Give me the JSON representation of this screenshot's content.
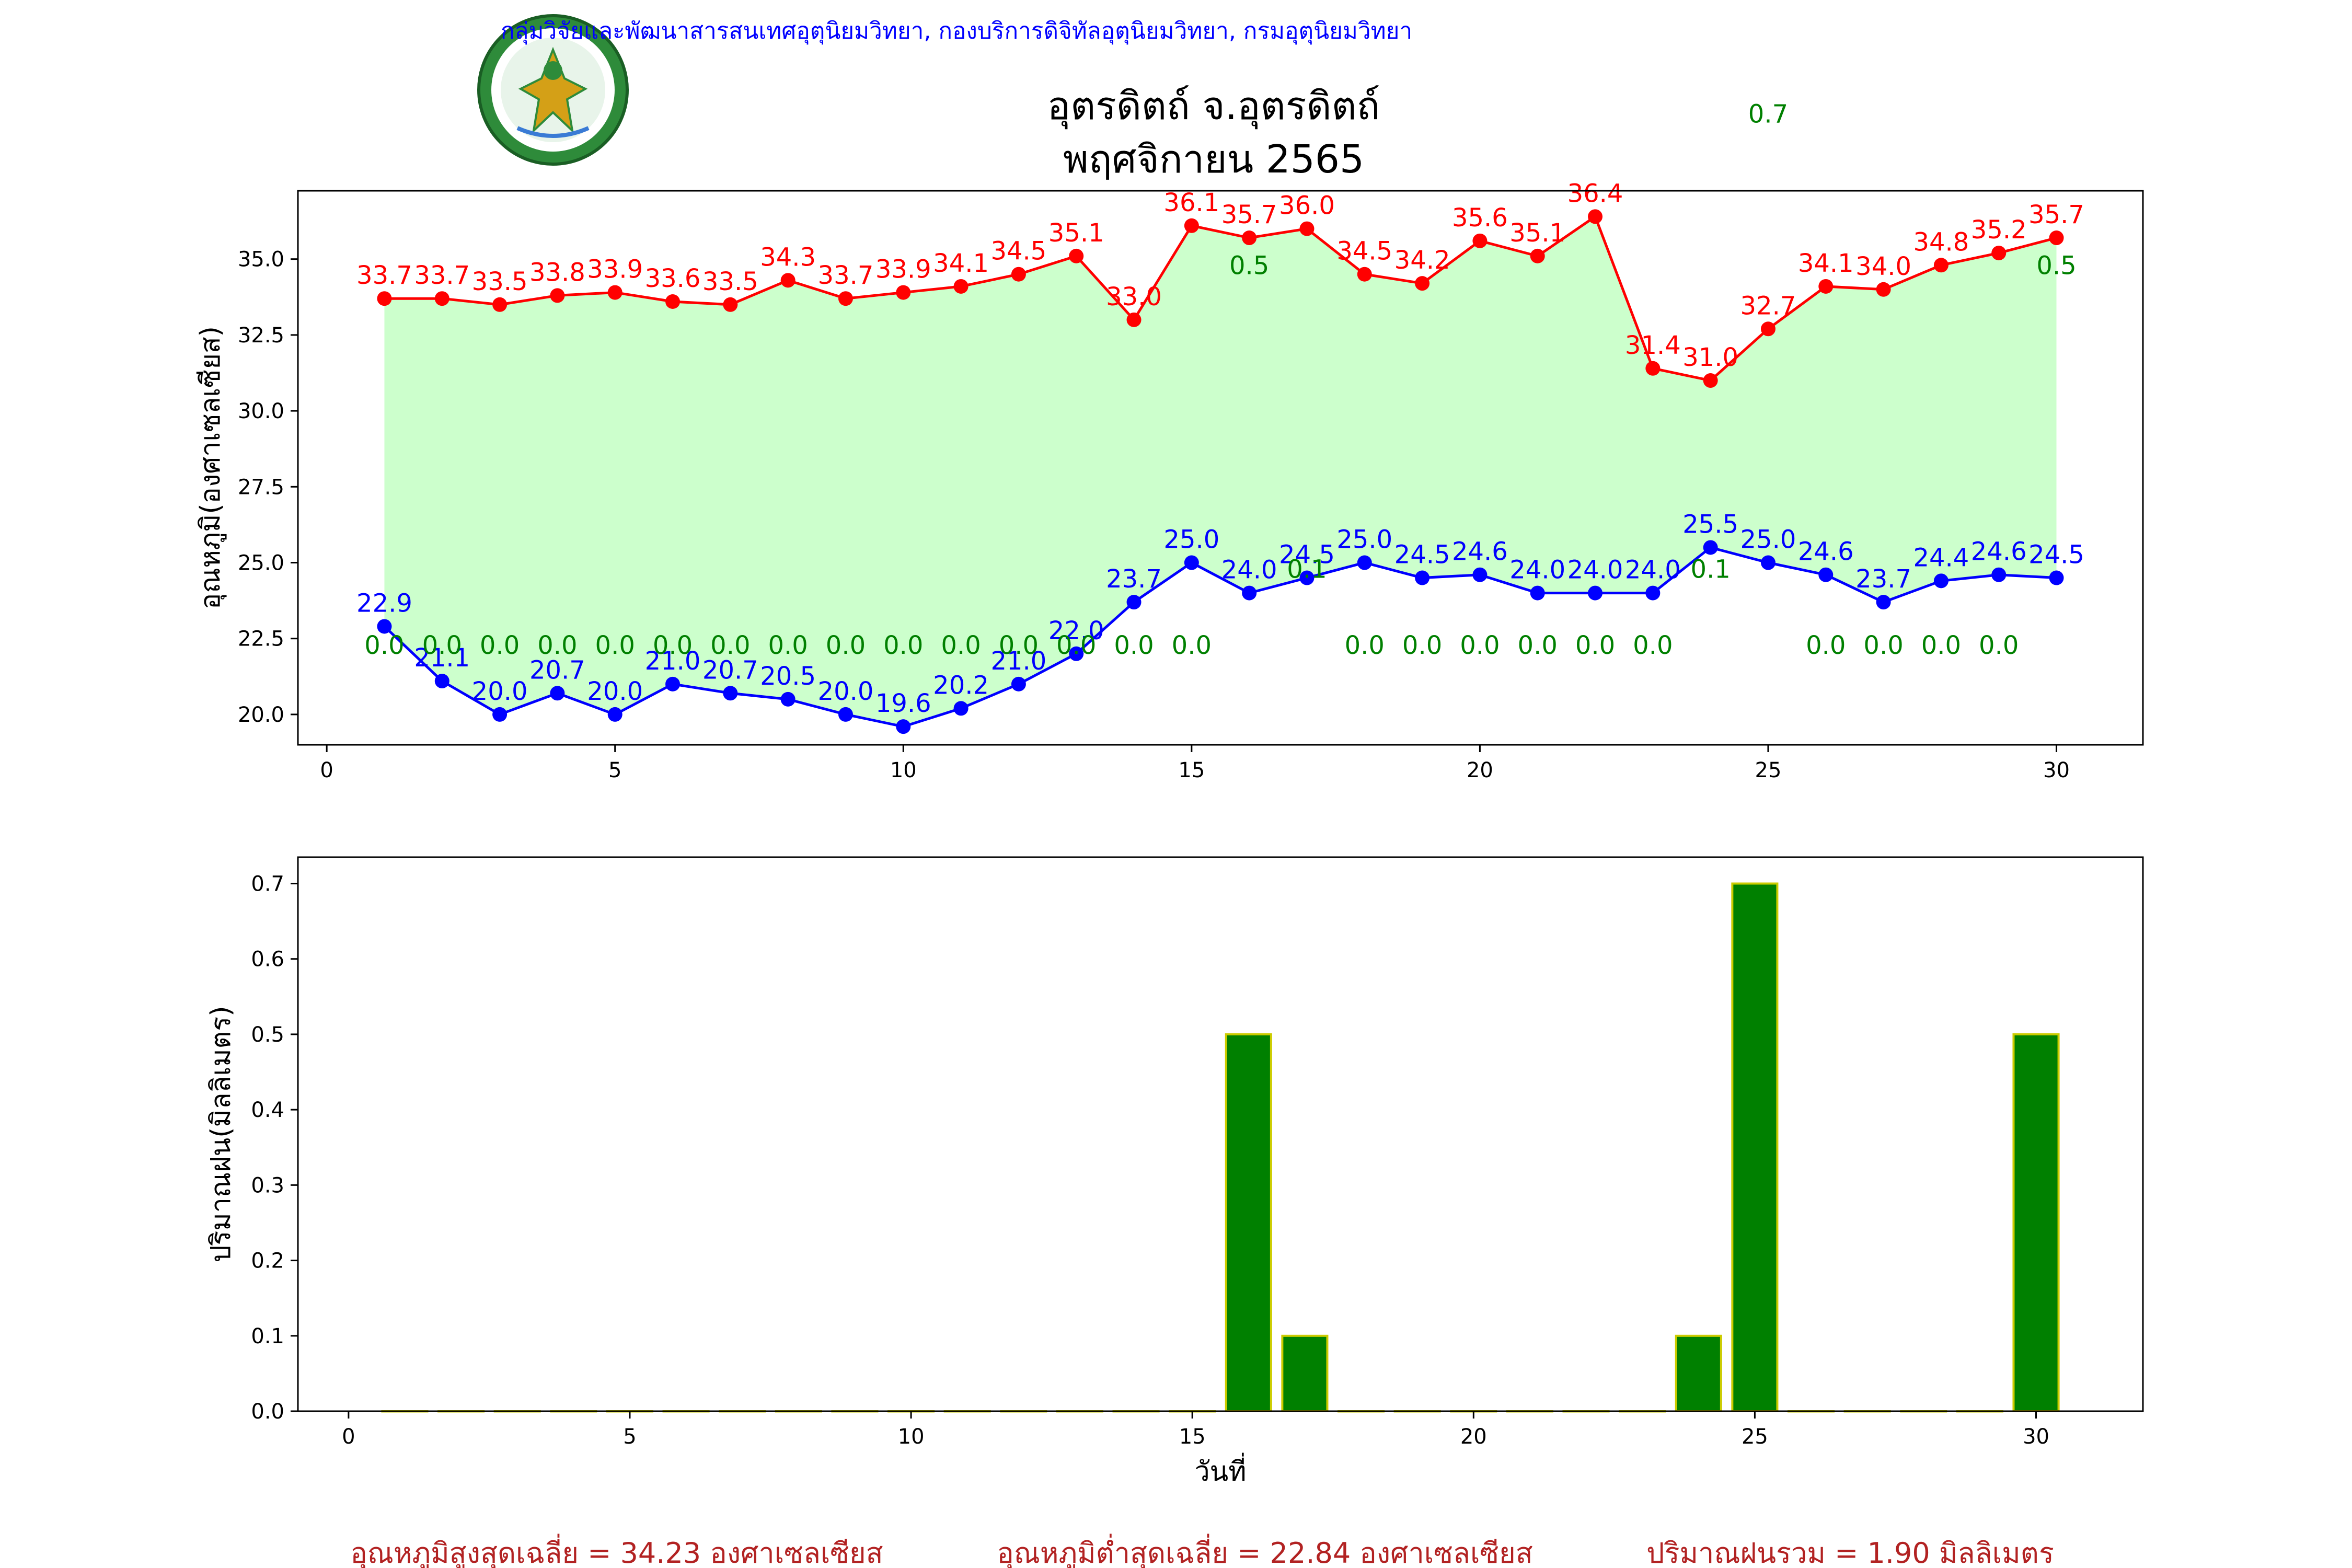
{
  "header": {
    "agency": "กลุ่มวิจัยและพัฒนาสารสนเทศอุตุนิยมวิทยา, กองบริการดิจิทัลอุตุนิยมวิทยา, กรมอุตุนิยมวิทยา",
    "title_line1": "อุตรดิตถ์ จ.อุตรดิตถ์",
    "title_line2": "พฤศจิกายน 2565"
  },
  "logo": {
    "text": "กรมอุตุนิยมวิทยา METEOROLOGICAL DEPARTMENT"
  },
  "colors": {
    "max_temp": "#ff0000",
    "min_temp": "#0000ff",
    "rain": "#008000",
    "fill": "#ccffcc",
    "bar_edge": "#cccc00",
    "summary": "#b22222",
    "agency": "#0000ff"
  },
  "chart_data": [
    {
      "type": "line",
      "x": [
        1,
        2,
        3,
        4,
        5,
        6,
        7,
        8,
        9,
        10,
        11,
        12,
        13,
        14,
        15,
        16,
        17,
        18,
        19,
        20,
        21,
        22,
        23,
        24,
        25,
        26,
        27,
        28,
        29,
        30
      ],
      "series": [
        {
          "name": "max",
          "values": [
            33.7,
            33.7,
            33.5,
            33.8,
            33.9,
            33.6,
            33.5,
            34.3,
            33.7,
            33.9,
            34.1,
            34.5,
            35.1,
            33.0,
            36.1,
            35.7,
            36.0,
            34.5,
            34.2,
            35.6,
            35.1,
            36.4,
            31.4,
            31.0,
            32.7,
            34.1,
            34.0,
            34.8,
            35.2,
            35.7
          ]
        },
        {
          "name": "min",
          "values": [
            22.9,
            21.1,
            20.0,
            20.7,
            20.0,
            21.0,
            20.7,
            20.5,
            20.0,
            19.6,
            20.2,
            21.0,
            22.0,
            23.7,
            25.0,
            24.0,
            24.5,
            25.0,
            24.5,
            24.6,
            24.0,
            24.0,
            24.0,
            25.5,
            25.0,
            24.6,
            23.7,
            24.4,
            24.6,
            24.5
          ]
        }
      ],
      "rain_labels": [
        {
          "x": 1,
          "y": 22.0,
          "text": "0.0"
        },
        {
          "x": 2,
          "y": 22.0,
          "text": "0.0"
        },
        {
          "x": 3,
          "y": 22.0,
          "text": "0.0"
        },
        {
          "x": 4,
          "y": 22.0,
          "text": "0.0"
        },
        {
          "x": 5,
          "y": 22.0,
          "text": "0.0"
        },
        {
          "x": 6,
          "y": 22.0,
          "text": "0.0"
        },
        {
          "x": 7,
          "y": 22.0,
          "text": "0.0"
        },
        {
          "x": 8,
          "y": 22.0,
          "text": "0.0"
        },
        {
          "x": 9,
          "y": 22.0,
          "text": "0.0"
        },
        {
          "x": 10,
          "y": 22.0,
          "text": "0.0"
        },
        {
          "x": 11,
          "y": 22.0,
          "text": "0.0"
        },
        {
          "x": 12,
          "y": 22.0,
          "text": "0.0"
        },
        {
          "x": 13,
          "y": 22.0,
          "text": "0.0"
        },
        {
          "x": 14,
          "y": 22.0,
          "text": "0.0"
        },
        {
          "x": 15,
          "y": 22.0,
          "text": "0.0"
        },
        {
          "x": 16,
          "y": 34.5,
          "text": "0.5"
        },
        {
          "x": 17,
          "y": 24.5,
          "text": "0.1"
        },
        {
          "x": 18,
          "y": 22.0,
          "text": "0.0"
        },
        {
          "x": 19,
          "y": 22.0,
          "text": "0.0"
        },
        {
          "x": 20,
          "y": 22.0,
          "text": "0.0"
        },
        {
          "x": 21,
          "y": 22.0,
          "text": "0.0"
        },
        {
          "x": 22,
          "y": 22.0,
          "text": "0.0"
        },
        {
          "x": 23,
          "y": 22.0,
          "text": "0.0"
        },
        {
          "x": 24,
          "y": 24.5,
          "text": "0.1"
        },
        {
          "x": 25,
          "y": 39.5,
          "text": "0.7"
        },
        {
          "x": 26,
          "y": 22.0,
          "text": "0.0"
        },
        {
          "x": 27,
          "y": 22.0,
          "text": "0.0"
        },
        {
          "x": 28,
          "y": 22.0,
          "text": "0.0"
        },
        {
          "x": 29,
          "y": 22.0,
          "text": "0.0"
        },
        {
          "x": 30,
          "y": 34.5,
          "text": "0.5"
        }
      ],
      "xlim": [
        -0.5,
        31.5
      ],
      "ylim": [
        19.0,
        37.25
      ],
      "xticks": [
        0,
        5,
        10,
        15,
        20,
        25,
        30
      ],
      "yticks": [
        20.0,
        22.5,
        25.0,
        27.5,
        30.0,
        32.5,
        35.0
      ],
      "ylabel": "อุณหภูมิ(องศาเซลเซียส)",
      "xlabel": "",
      "grid": false
    },
    {
      "type": "bar",
      "x": [
        1,
        2,
        3,
        4,
        5,
        6,
        7,
        8,
        9,
        10,
        11,
        12,
        13,
        14,
        15,
        16,
        17,
        18,
        19,
        20,
        21,
        22,
        23,
        24,
        25,
        26,
        27,
        28,
        29,
        30
      ],
      "values": [
        0,
        0,
        0,
        0,
        0,
        0,
        0,
        0,
        0,
        0,
        0,
        0,
        0,
        0,
        0,
        0.5,
        0.1,
        0,
        0,
        0,
        0,
        0,
        0,
        0.1,
        0.7,
        0,
        0,
        0,
        0,
        0.5
      ],
      "xlim": [
        -0.9,
        31.9
      ],
      "ylim": [
        0,
        0.735
      ],
      "xticks": [
        0,
        5,
        10,
        15,
        20,
        25,
        30
      ],
      "yticks": [
        0.0,
        0.1,
        0.2,
        0.3,
        0.4,
        0.5,
        0.6,
        0.7
      ],
      "ylabel": "ปริมาณฝน(มิลลิเมตร)",
      "xlabel": "วันที่",
      "grid": false
    }
  ],
  "summary": {
    "max_avg": "อุณหภูมิสูงสุดเฉลี่ย = 34.23 องศาเซลเซียส",
    "min_avg": "อุณหภูมิต่ำสุดเฉลี่ย = 22.84 องศาเซลเซียส",
    "rain_total": "ปริมาณฝนรวม = 1.90 มิลลิเมตร"
  }
}
